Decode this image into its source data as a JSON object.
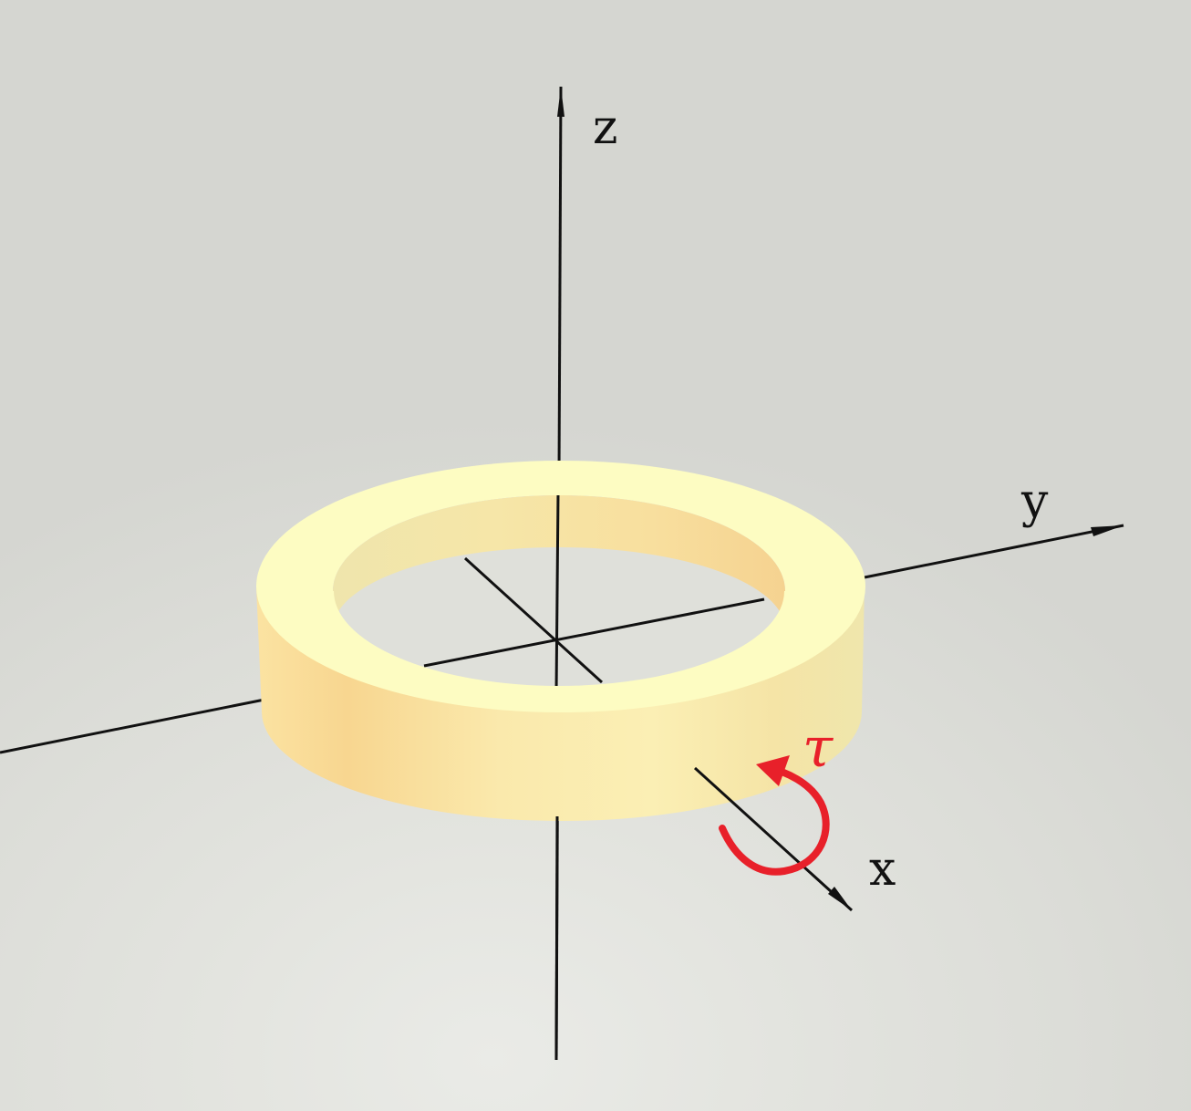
{
  "labels": {
    "z_axis": "z",
    "y_axis": "y",
    "x_axis": "x",
    "torque": "τ"
  },
  "colors": {
    "ring_top": "#fdfcc2",
    "ring_side_light": "#fbeeb0",
    "ring_side_dark": "#f8d690",
    "ring_inner_wall": "#f3e2a4",
    "axis": "#111111",
    "torque_arrow": "#e8202a"
  }
}
